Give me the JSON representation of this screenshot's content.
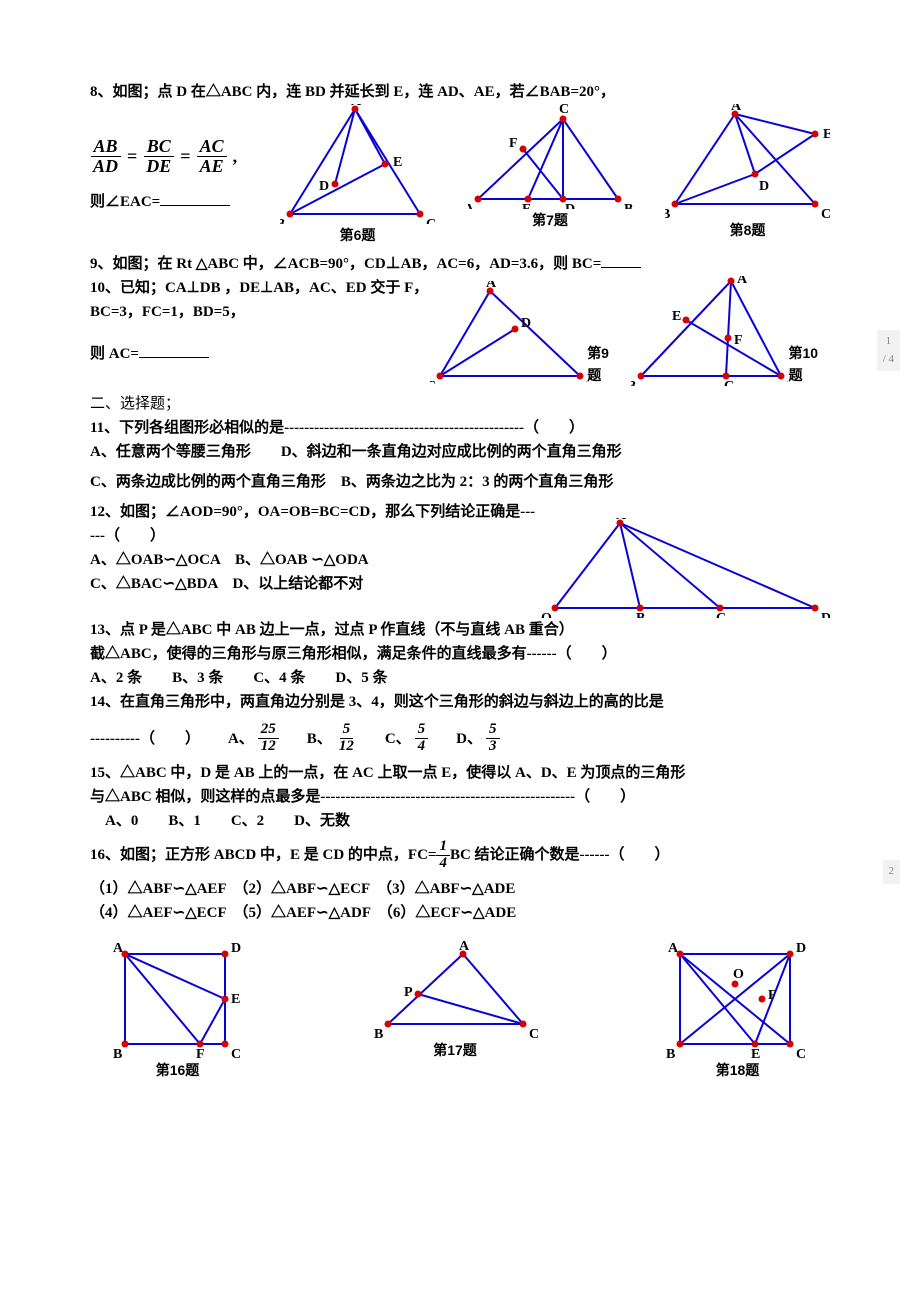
{
  "colors": {
    "text": "#000000",
    "bg": "#ffffff",
    "figure_line": "#0a02d6",
    "figure_point": "#d40202",
    "figure_label": "#000000",
    "pager_bg": "#f2f2f2",
    "pager_text": "#888888"
  },
  "pager": {
    "p1": "1",
    "p2": "2",
    "total": "/ 4"
  },
  "q8": {
    "line1": "8、如图；点 D 在△ABC 内，连 BD 并延长到 E，连 AD、AE，若∠BAB=20°，",
    "eq_ab": "AB",
    "eq_ad": "AD",
    "eq_bc": "BC",
    "eq_de": "DE",
    "eq_ac": "AC",
    "eq_ae": "AE",
    "eq_eq": "=",
    "eq_comma": ",",
    "line3a": "则∠EAC=",
    "fig6_label": "第6题",
    "fig7_label": "第7题",
    "fig8_label": "第8题"
  },
  "q9": {
    "text": "9、如图；在 Rt △ABC 中，∠ACB=90°，CD⊥AB，AC=6，AD=3.6，则 BC="
  },
  "q10": {
    "line1": "10、已知；CA⊥DB ，DE⊥AB，AC、ED 交于 F，BC=3，FC=1，BD=5，",
    "line2a": "  则 AC=",
    "fig9_label": "第9题",
    "fig10_label": "第10题"
  },
  "section2": "二、选择题；",
  "q11": {
    "stem": "11、下列各组图形必相似的是------------------------------------------------（　　）",
    "optA": "A、任意两个等腰三角形　　D、斜边和一条直角边对应成比例的两个直角三角形",
    "optC": "C、两条边成比例的两个直角三角形　B、两条边之比为 2：3 的两个直角三角形"
  },
  "q12": {
    "stem": "12、如图；∠AOD=90°，OA=OB=BC=CD，那么下列结论正确是------（　　）",
    "optA": "A、△OAB∽△OCA　B、△OAB ∽△ODA",
    "optC": "C、△BAC∽△BDA　D、以上结论都不对"
  },
  "q13": {
    "line1": "13、点 P 是△ABC 中 AB 边上一点，过点 P 作直线（不与直线 AB 重合）",
    "line2": "截△ABC，使得的三角形与原三角形相似，满足条件的直线最多有------（　　）",
    "opts": "A、2 条　　B、3 条　　C、4 条　　D、5 条"
  },
  "q14": {
    "line1": "14、在直角三角形中，两直角边分别是 3、4，则这个三角形的斜边与斜边上的高的比是",
    "dash": "----------（　　）",
    "A": "A、",
    "B": "B、",
    "C": "C、",
    "D": "D、",
    "fA_n": "25",
    "fA_d": "12",
    "fB_n": "5",
    "fB_d": "12",
    "fC_n": "5",
    "fC_d": "4",
    "fD_n": "5",
    "fD_d": "3"
  },
  "q15": {
    "line1": "15、△ABC 中，D 是 AB 上的一点，在 AC 上取一点 E，使得以 A、D、E 为顶点的三角形",
    "line2": "与△ABC 相似，则这样的点最多是---------------------------------------------------（　　）",
    "opts": "　A、0　　B、1　　C、2　　D、无数"
  },
  "q16": {
    "stem_a": "16、如图；正方形 ABCD 中，E 是 CD 的中点，FC=",
    "stem_b": " BC 结论正确个数是------（　　）",
    "fn": "1",
    "fd": "4",
    "row1": "（1）△ABF∽△AEF　（2）△ABF∽△ECF　（3）△ABF∽△ADE",
    "row2": "（4）△AEF∽△ECF　（5）△AEF∽△ADF　（6）△ECF∽△ADE",
    "fig16_label": "第16题",
    "fig17_label": "第17题",
    "fig18_label": "第18题"
  },
  "figures": {
    "fig6": {
      "points": {
        "A": [
          75,
          5
        ],
        "B": [
          10,
          110
        ],
        "C": [
          140,
          110
        ],
        "D": [
          55,
          80
        ],
        "E": [
          105,
          60
        ]
      },
      "edges": [
        [
          "A",
          "B"
        ],
        [
          "A",
          "C"
        ],
        [
          "B",
          "C"
        ],
        [
          "B",
          "E"
        ],
        [
          "A",
          "D"
        ],
        [
          "A",
          "E"
        ]
      ]
    },
    "fig7": {
      "points": {
        "A": [
          10,
          95
        ],
        "B": [
          150,
          95
        ],
        "C": [
          95,
          15
        ],
        "D": [
          95,
          95
        ],
        "E": [
          60,
          95
        ],
        "F": [
          55,
          45
        ]
      },
      "edges": [
        [
          "A",
          "B"
        ],
        [
          "A",
          "C"
        ],
        [
          "B",
          "C"
        ],
        [
          "C",
          "D"
        ],
        [
          "C",
          "E"
        ],
        [
          "F",
          "D"
        ]
      ]
    },
    "fig8": {
      "points": {
        "A": [
          70,
          10
        ],
        "B": [
          10,
          100
        ],
        "C": [
          150,
          100
        ],
        "D": [
          90,
          70
        ],
        "E": [
          150,
          30
        ]
      },
      "edges": [
        [
          "A",
          "B"
        ],
        [
          "A",
          "C"
        ],
        [
          "B",
          "C"
        ],
        [
          "B",
          "D"
        ],
        [
          "D",
          "E"
        ],
        [
          "A",
          "D"
        ],
        [
          "A",
          "E"
        ]
      ]
    },
    "fig9": {
      "points": {
        "A": [
          60,
          10
        ],
        "B": [
          150,
          95
        ],
        "C": [
          10,
          95
        ],
        "D": [
          85,
          48
        ]
      },
      "edges": [
        [
          "A",
          "B"
        ],
        [
          "A",
          "C"
        ],
        [
          "B",
          "C"
        ],
        [
          "C",
          "D"
        ]
      ]
    },
    "fig10": {
      "points": {
        "A": [
          100,
          5
        ],
        "B": [
          10,
          100
        ],
        "C": [
          95,
          100
        ],
        "D": [
          150,
          100
        ],
        "E": [
          55,
          44
        ],
        "F": [
          97,
          62
        ]
      },
      "edges": [
        [
          "A",
          "B"
        ],
        [
          "A",
          "C"
        ],
        [
          "B",
          "D"
        ],
        [
          "E",
          "D"
        ],
        [
          "A",
          "D"
        ]
      ]
    },
    "fig12": {
      "points": {
        "O": [
          15,
          90
        ],
        "A": [
          80,
          5
        ],
        "B": [
          100,
          90
        ],
        "C": [
          180,
          90
        ],
        "D": [
          275,
          90
        ]
      },
      "edges": [
        [
          "O",
          "A"
        ],
        [
          "O",
          "D"
        ],
        [
          "A",
          "B"
        ],
        [
          "A",
          "C"
        ],
        [
          "A",
          "D"
        ]
      ]
    },
    "fig16": {
      "points": {
        "A": [
          15,
          15
        ],
        "D": [
          115,
          15
        ],
        "B": [
          15,
          105
        ],
        "C": [
          115,
          105
        ],
        "E": [
          115,
          60
        ],
        "F": [
          90,
          105
        ]
      },
      "edges": [
        [
          "A",
          "D"
        ],
        [
          "D",
          "C"
        ],
        [
          "C",
          "B"
        ],
        [
          "B",
          "A"
        ],
        [
          "A",
          "E"
        ],
        [
          "A",
          "F"
        ],
        [
          "E",
          "F"
        ]
      ]
    },
    "fig17": {
      "points": {
        "A": [
          90,
          15
        ],
        "B": [
          15,
          85
        ],
        "C": [
          150,
          85
        ],
        "P": [
          45,
          55
        ]
      },
      "edges": [
        [
          "A",
          "B"
        ],
        [
          "A",
          "C"
        ],
        [
          "B",
          "C"
        ],
        [
          "P",
          "C"
        ]
      ]
    },
    "fig18": {
      "points": {
        "A": [
          15,
          15
        ],
        "D": [
          125,
          15
        ],
        "B": [
          15,
          105
        ],
        "C": [
          125,
          105
        ],
        "E": [
          90,
          105
        ],
        "F": [
          97,
          60
        ],
        "O": [
          70,
          45
        ]
      },
      "edges": [
        [
          "A",
          "D"
        ],
        [
          "D",
          "C"
        ],
        [
          "C",
          "B"
        ],
        [
          "B",
          "A"
        ],
        [
          "A",
          "C"
        ],
        [
          "B",
          "D"
        ],
        [
          "A",
          "E"
        ],
        [
          "D",
          "E"
        ]
      ]
    }
  },
  "label_offsets": {
    "fig6": {
      "A": [
        -4,
        -4
      ],
      "B": [
        -14,
        14
      ],
      "C": [
        6,
        14
      ],
      "D": [
        -16,
        6
      ],
      "E": [
        8,
        2
      ]
    },
    "fig7": {
      "A": [
        -14,
        14
      ],
      "B": [
        6,
        14
      ],
      "C": [
        -4,
        -6
      ],
      "D": [
        2,
        14
      ],
      "E": [
        -6,
        14
      ],
      "F": [
        -14,
        -2
      ]
    },
    "fig8": {
      "A": [
        -4,
        -4
      ],
      "B": [
        -14,
        14
      ],
      "C": [
        6,
        14
      ],
      "D": [
        4,
        16
      ],
      "E": [
        8,
        4
      ]
    },
    "fig9": {
      "A": [
        -4,
        -4
      ],
      "B": [
        6,
        14
      ],
      "C": [
        -14,
        14
      ],
      "D": [
        6,
        -2
      ]
    },
    "fig10": {
      "A": [
        6,
        2
      ],
      "B": [
        -14,
        14
      ],
      "C": [
        -2,
        14
      ],
      "D": [
        6,
        14
      ],
      "E": [
        -14,
        0
      ],
      "F": [
        6,
        6
      ]
    },
    "fig12": {
      "O": [
        -14,
        14
      ],
      "A": [
        -4,
        -4
      ],
      "B": [
        -4,
        14
      ],
      "C": [
        -4,
        14
      ],
      "D": [
        6,
        14
      ]
    },
    "fig16": {
      "A": [
        -12,
        -2
      ],
      "D": [
        6,
        -2
      ],
      "B": [
        -12,
        14
      ],
      "C": [
        6,
        14
      ],
      "E": [
        6,
        4
      ],
      "F": [
        -4,
        14
      ]
    },
    "fig17": {
      "A": [
        -4,
        -4
      ],
      "B": [
        -14,
        14
      ],
      "C": [
        6,
        14
      ],
      "P": [
        -14,
        2
      ]
    },
    "fig18": {
      "A": [
        -12,
        -2
      ],
      "D": [
        6,
        -2
      ],
      "B": [
        -14,
        14
      ],
      "C": [
        6,
        14
      ],
      "E": [
        -4,
        14
      ],
      "F": [
        6,
        0
      ],
      "O": [
        -2,
        -6
      ]
    }
  }
}
